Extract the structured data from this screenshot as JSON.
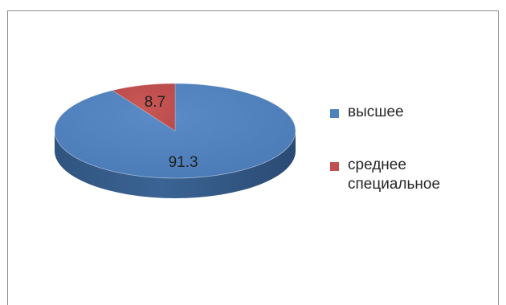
{
  "chart_data": {
    "type": "pie",
    "categories": [
      "высшее",
      "среднее специальное"
    ],
    "values": [
      91.3,
      8.7
    ],
    "data_labels": [
      "91.3",
      "8.7"
    ],
    "colors": [
      "#4f81bd",
      "#c0504d"
    ],
    "title": "",
    "three_d": true,
    "legend": {
      "placement": "right",
      "entries": [
        "высшее",
        "среднее специальное"
      ]
    }
  }
}
